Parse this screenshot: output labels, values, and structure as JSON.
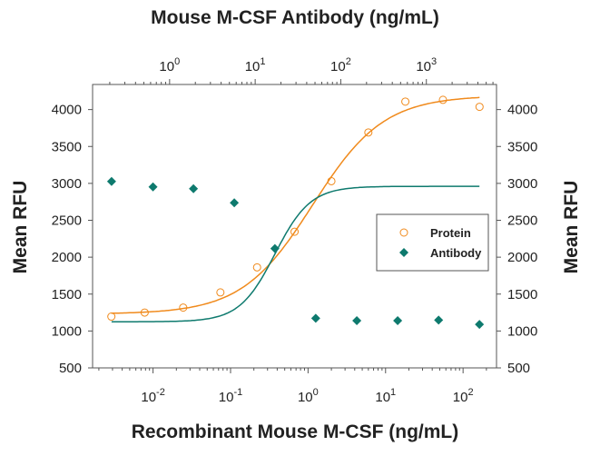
{
  "chart_data": {
    "type": "scatter",
    "title": "Mouse M-CSF Antibody (ng/mL)",
    "xlabel": "Recombinant Mouse M-CSF (ng/mL)",
    "x2label": "Mouse M-CSF Antibody (ng/mL)",
    "ylabel": "Mean RFU",
    "y2label": "Mean RFU",
    "xscale": "log",
    "x2scale": "log",
    "xlim": [
      0.00166,
      270
    ],
    "x2lim": [
      0.126,
      6600
    ],
    "ylim": [
      500,
      4340
    ],
    "x_ticks": [
      "10^-2",
      "10^-1",
      "10^0",
      "10^1",
      "10^2"
    ],
    "x2_ticks": [
      "10^0",
      "10^1",
      "10^2",
      "10^3"
    ],
    "y_ticks": [
      500,
      1000,
      1500,
      2000,
      2500,
      3000,
      3500,
      4000
    ],
    "grid": false,
    "legend_position": "right-middle",
    "series": [
      {
        "name": "Protein",
        "axis": "bottom",
        "marker": "open-circle",
        "color": "#F08A1C",
        "x": [
          0.0029,
          0.0078,
          0.0245,
          0.074,
          0.22,
          0.67,
          2.0,
          6.0,
          18,
          55,
          163
        ],
        "y": [
          1195,
          1250,
          1317,
          1523,
          1862,
          2345,
          3030,
          3690,
          4108,
          4132,
          4037
        ],
        "fit": {
          "bottom": 1230,
          "top": 4190,
          "ec50": 1.15,
          "hill": 0.95
        }
      },
      {
        "name": "Antibody",
        "axis": "top",
        "marker": "filled-diamond",
        "color": "#0E7A6E",
        "x": [
          0.21,
          0.64,
          1.9,
          5.7,
          17,
          51,
          154,
          462,
          1390,
          4170
        ],
        "y": [
          3026,
          2952,
          2927,
          2737,
          2117,
          1172,
          1140,
          1140,
          1148,
          1090
        ],
        "fit": {
          "bottom": 1125,
          "top": 2960,
          "ec50": 17,
          "hill": 2.1
        }
      }
    ]
  }
}
